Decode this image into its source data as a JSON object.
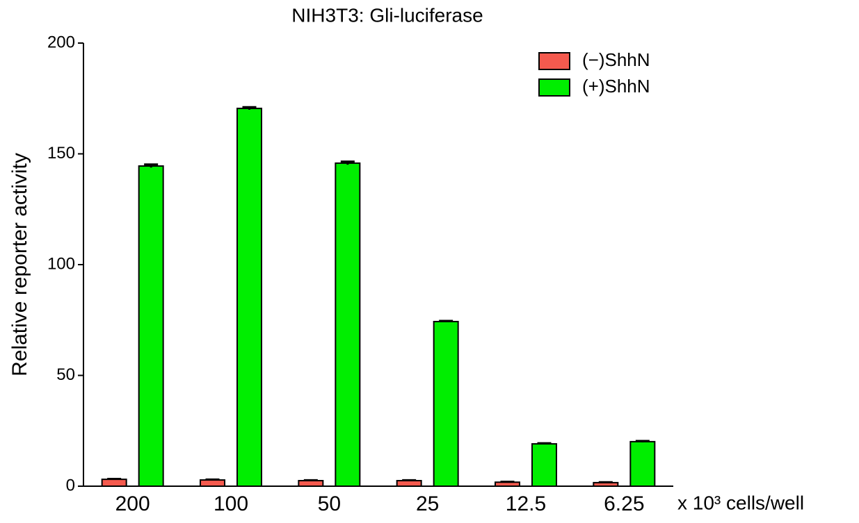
{
  "chart_data": {
    "type": "bar",
    "title": "NIH3T3: Gli-luciferase",
    "y_label": "Relative reporter activity",
    "x_label": "x 10³  cells/well",
    "categories": [
      "200",
      "100",
      "50",
      "25",
      "12.5",
      "6.25"
    ],
    "series": [
      {
        "name": "(−)ShhN",
        "color": "#f55a4e",
        "values": [
          3.1,
          2.8,
          2.5,
          2.5,
          1.8,
          1.6
        ],
        "errors": [
          0.2,
          0.2,
          0.2,
          0.2,
          0.2,
          0.2
        ]
      },
      {
        "name": "(+)ShhN",
        "color": "#00ee00",
        "values": [
          144.5,
          170.5,
          145.8,
          74.3,
          19.1,
          20.1
        ],
        "errors": [
          0.7,
          0.6,
          0.7,
          0.3,
          0.3,
          0.3
        ]
      }
    ],
    "ylim": [
      0,
      200
    ],
    "yticks": [
      0,
      50,
      100,
      150,
      200
    ],
    "legend": "upper right"
  }
}
